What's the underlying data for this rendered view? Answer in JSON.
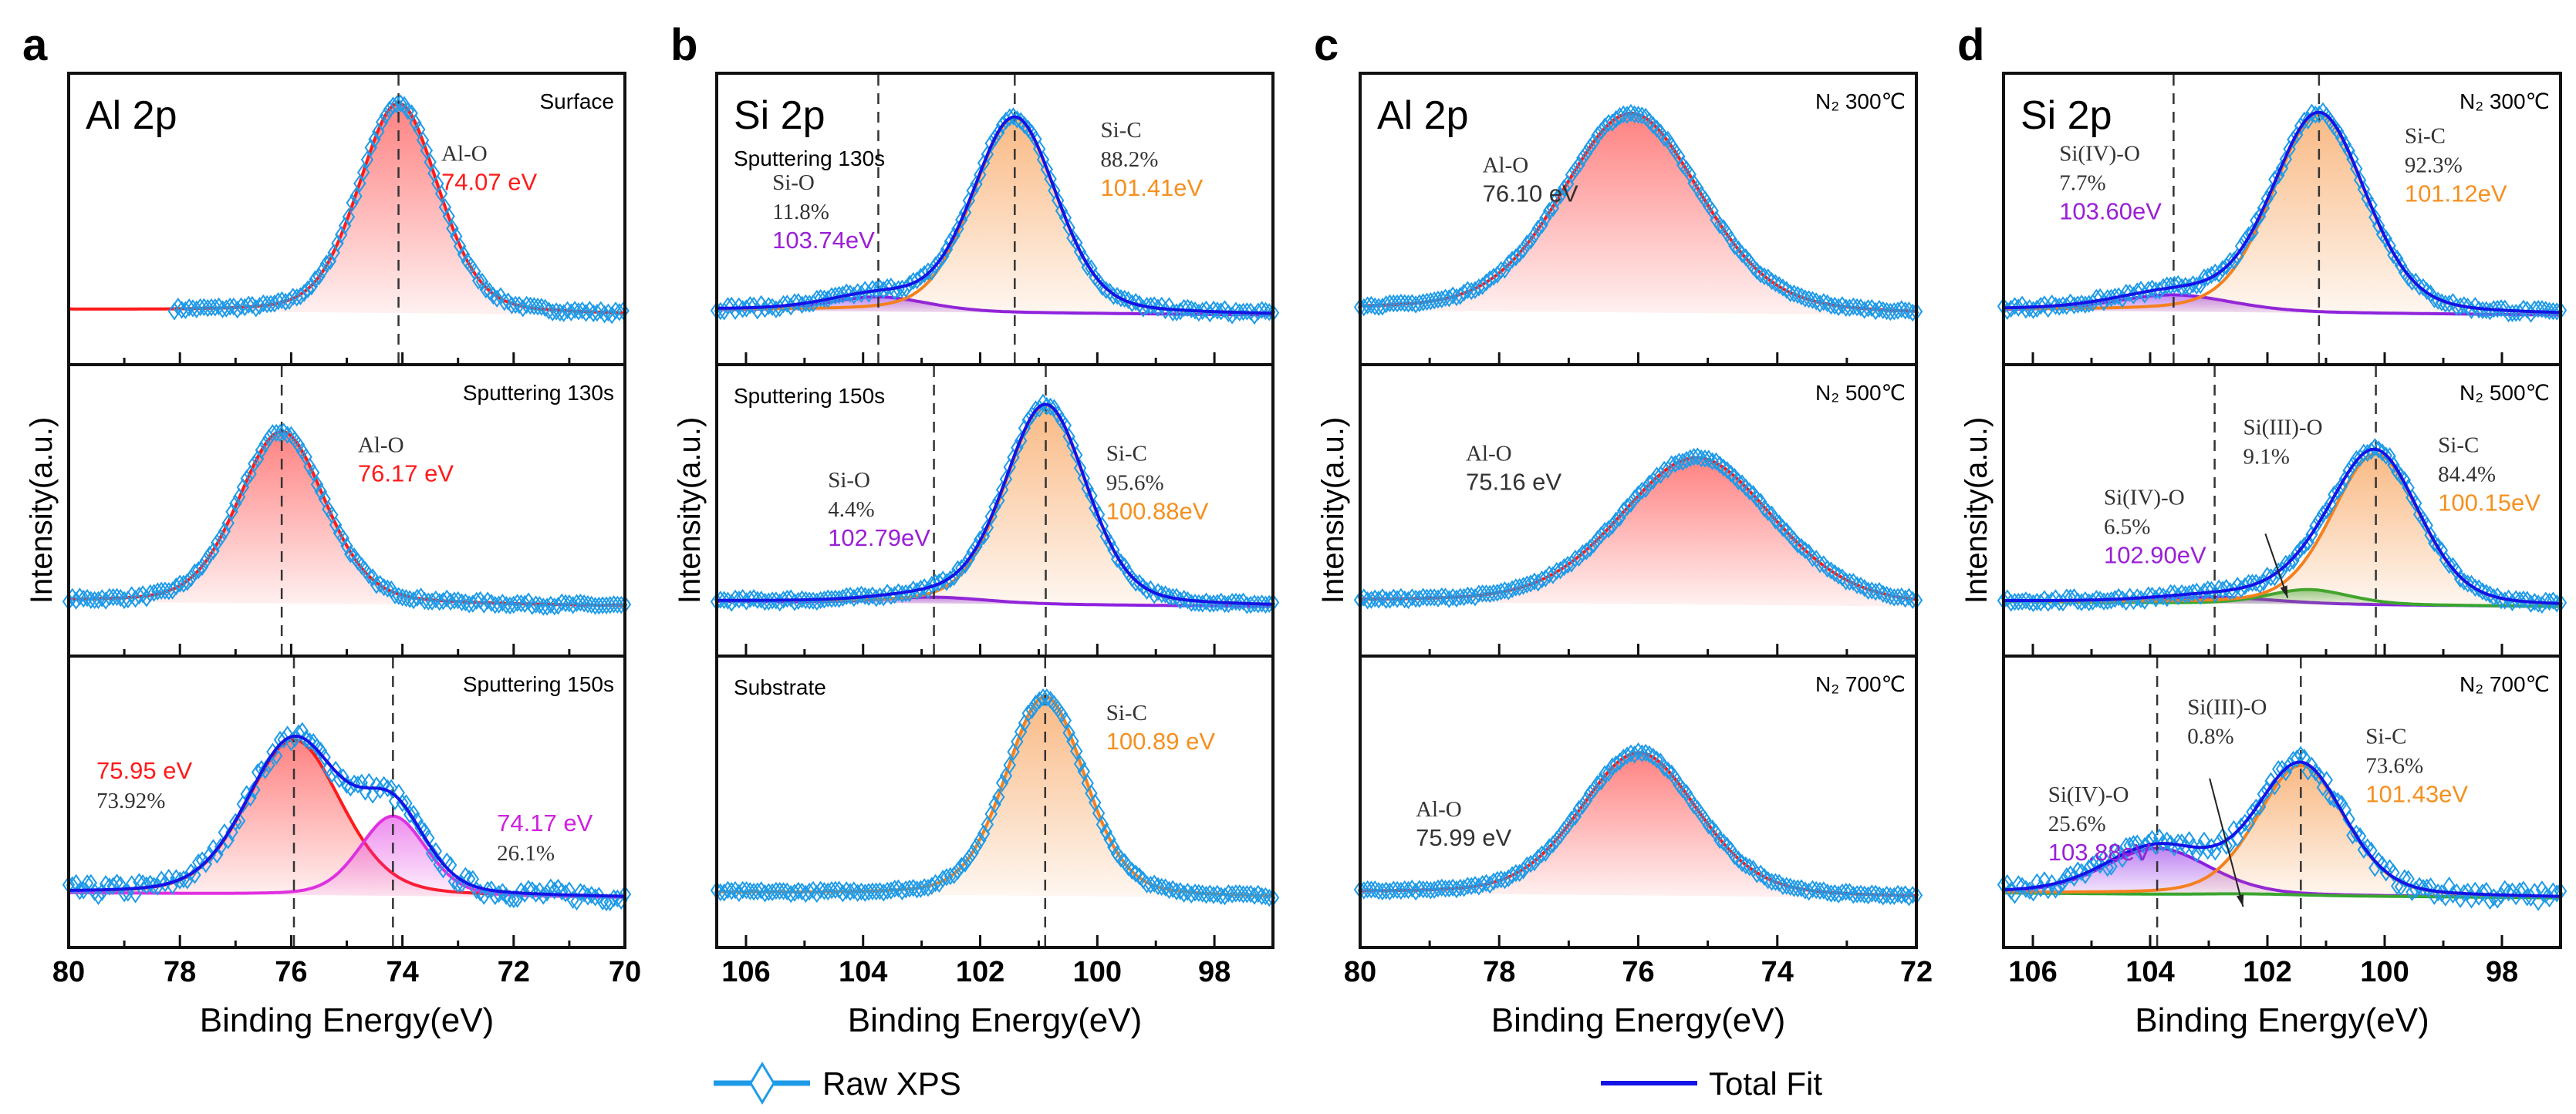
{
  "legend": {
    "raw_label": "Raw XPS",
    "fit_label": "Total Fit",
    "raw_color": "#1e9be8",
    "fit_color": "#1414e6",
    "placement": "bottom"
  },
  "chart_data": [
    {
      "panel": "a",
      "type": "line",
      "title": "Al 2p",
      "xlabel": "Binding Energy(eV)",
      "ylabel": "Intensity(a.u.)",
      "xlim": [
        80,
        70
      ],
      "xticks": [
        80,
        78,
        76,
        74,
        72,
        70
      ],
      "reversed_x": true,
      "subplots": [
        {
          "condition": "Surface",
          "dashed": [
            74.07
          ],
          "raw_range": [
            78.1,
            70
          ],
          "noise": 0.012,
          "components": [
            {
              "name": "Al-O",
              "center": 74.07,
              "amplitude": 1.0,
              "sigma": 0.72,
              "color": "#ff1a1a",
              "label": [
                {
                  "text": "Al-O",
                  "color": "#333333"
                },
                {
                  "text": "74.07 eV",
                  "color": "#ff1a1a"
                }
              ]
            }
          ]
        },
        {
          "condition": "Sputtering 130s",
          "dashed": [
            76.17
          ],
          "raw_range": [
            80,
            70
          ],
          "noise": 0.012,
          "components": [
            {
              "name": "Al-O",
              "center": 76.17,
              "amplitude": 0.82,
              "sigma": 0.78,
              "color": "#ff1a1a",
              "label": [
                {
                  "text": "Al-O",
                  "color": "#333333"
                },
                {
                  "text": "76.17 eV",
                  "color": "#ff1a1a"
                }
              ]
            }
          ]
        },
        {
          "condition": "Sputtering 150s",
          "dashed": [
            75.95,
            74.17
          ],
          "raw_range": [
            80,
            70
          ],
          "noise": 0.035,
          "components": [
            {
              "name": "Al-O",
              "center": 75.95,
              "percent": "73.92%",
              "amplitude": 0.74,
              "sigma": 0.85,
              "color": "#ff1a1a",
              "label": [
                {
                  "text": "75.95 eV",
                  "color": "#ff1a1a"
                },
                {
                  "text": "73.92%",
                  "color": "#333333"
                }
              ]
            },
            {
              "name": "",
              "center": 74.17,
              "percent": "26.1%",
              "amplitude": 0.38,
              "sigma": 0.6,
              "color": "#e030e0",
              "label": [
                {
                  "text": "74.17 eV",
                  "color": "#d020e0"
                },
                {
                  "text": "26.1%",
                  "color": "#333333"
                }
              ]
            }
          ]
        }
      ]
    },
    {
      "panel": "b",
      "type": "line",
      "title": "Si 2p",
      "xlabel": "Binding Energy(eV)",
      "ylabel": "Intensity(a.u.)",
      "xlim": [
        106.5,
        97
      ],
      "xticks": [
        106,
        104,
        102,
        100,
        98
      ],
      "reversed_x": true,
      "subplots": [
        {
          "condition": "Sputtering 130s",
          "dashed": [
            103.74,
            101.41
          ],
          "raw_range": [
            106.5,
            97
          ],
          "noise": 0.015,
          "components": [
            {
              "name": "Si-O",
              "center": 103.74,
              "percent": "11.8%",
              "amplitude": 0.07,
              "sigma": 0.85,
              "color": "#8a1ee6",
              "label": [
                {
                  "text": "Si-O",
                  "color": "#333333"
                },
                {
                  "text": "11.8%",
                  "color": "#333333"
                },
                {
                  "text": "103.74eV",
                  "color": "#9b1fd6"
                }
              ]
            },
            {
              "name": "Si-C",
              "center": 101.41,
              "percent": "88.2%",
              "amplitude": 0.93,
              "sigma": 0.72,
              "color": "#f5801f",
              "label": [
                {
                  "text": "Si-C",
                  "color": "#333333"
                },
                {
                  "text": "88.2%",
                  "color": "#333333"
                },
                {
                  "text": "101.41eV",
                  "color": "#f5901f"
                }
              ]
            }
          ]
        },
        {
          "condition": "Sputtering 150s",
          "dashed": [
            102.79,
            100.88
          ],
          "raw_range": [
            106.5,
            97
          ],
          "noise": 0.012,
          "components": [
            {
              "name": "Si-O",
              "center": 102.79,
              "percent": "4.4%",
              "amplitude": 0.03,
              "sigma": 0.9,
              "color": "#8a1ee6",
              "label": [
                {
                  "text": "Si-O",
                  "color": "#333333"
                },
                {
                  "text": "4.4%",
                  "color": "#333333"
                },
                {
                  "text": "102.79eV",
                  "color": "#9b1fd6"
                }
              ]
            },
            {
              "name": "Si-C",
              "center": 100.88,
              "percent": "95.6%",
              "amplitude": 0.95,
              "sigma": 0.7,
              "color": "#f5801f",
              "label": [
                {
                  "text": "Si-C",
                  "color": "#333333"
                },
                {
                  "text": "95.6%",
                  "color": "#333333"
                },
                {
                  "text": "100.88eV",
                  "color": "#f5901f"
                }
              ]
            }
          ]
        },
        {
          "condition": "Substrate",
          "dashed": [
            100.89
          ],
          "raw_range": [
            106.5,
            97
          ],
          "noise": 0.01,
          "components": [
            {
              "name": "Si-C",
              "center": 100.89,
              "amplitude": 0.95,
              "sigma": 0.68,
              "color": "#f5801f",
              "label": [
                {
                  "text": "Si-C",
                  "color": "#333333"
                },
                {
                  "text": "100.89 eV",
                  "color": "#f5901f"
                }
              ]
            }
          ]
        }
      ]
    },
    {
      "panel": "c",
      "type": "line",
      "title": "Al 2p",
      "xlabel": "Binding Energy(eV)",
      "ylabel": "Intensity(a.u.)",
      "xlim": [
        80,
        72
      ],
      "xticks": [
        80,
        78,
        76,
        74,
        72
      ],
      "reversed_x": true,
      "subplots": [
        {
          "condition": "N₂ 300℃",
          "dashed": [],
          "raw_range": [
            80,
            72
          ],
          "noise": 0.008,
          "components": [
            {
              "name": "Al-O",
              "center": 76.1,
              "amplitude": 0.95,
              "sigma": 1.0,
              "color": "#ff1a1a",
              "label": [
                {
                  "text": "Al-O",
                  "color": "#333333"
                },
                {
                  "text": "76.10 eV",
                  "color": "#333333"
                }
              ]
            }
          ]
        },
        {
          "condition": "N₂ 500℃",
          "dashed": [],
          "raw_range": [
            80,
            72
          ],
          "noise": 0.008,
          "components": [
            {
              "name": "Al-O",
              "center": 75.16,
              "amplitude": 0.7,
              "sigma": 1.1,
              "color": "#ff1a1a",
              "label": [
                {
                  "text": "Al-O",
                  "color": "#333333"
                },
                {
                  "text": "75.16 eV",
                  "color": "#333333"
                }
              ]
            }
          ]
        },
        {
          "condition": "N₂ 700℃",
          "dashed": [],
          "raw_range": [
            80,
            72
          ],
          "noise": 0.008,
          "components": [
            {
              "name": "Al-O",
              "center": 75.99,
              "amplitude": 0.68,
              "sigma": 0.85,
              "color": "#ff1a1a",
              "label": [
                {
                  "text": "Al-O",
                  "color": "#333333"
                },
                {
                  "text": "75.99 eV",
                  "color": "#333333"
                }
              ]
            }
          ]
        }
      ]
    },
    {
      "panel": "d",
      "type": "line",
      "title": "Si 2p",
      "xlabel": "Binding Energy(eV)",
      "ylabel": "Intensity(a.u.)",
      "xlim": [
        106.5,
        97
      ],
      "xticks": [
        106,
        104,
        102,
        100,
        98
      ],
      "reversed_x": true,
      "subplots": [
        {
          "condition": "N₂ 300℃",
          "dashed": [
            103.6,
            101.12
          ],
          "raw_range": [
            106.5,
            97
          ],
          "noise": 0.015,
          "components": [
            {
              "name": "Si(IV)-O",
              "center": 103.6,
              "percent": "7.7%",
              "amplitude": 0.08,
              "sigma": 1.0,
              "color": "#8a1ee6",
              "label": [
                {
                  "text": "Si(IV)-O",
                  "color": "#333333"
                },
                {
                  "text": "7.7%",
                  "color": "#333333"
                },
                {
                  "text": "103.60eV",
                  "color": "#9b1fd6"
                }
              ]
            },
            {
              "name": "Si-C",
              "center": 101.12,
              "percent": "92.3%",
              "amplitude": 0.95,
              "sigma": 0.8,
              "color": "#f5801f",
              "label": [
                {
                  "text": "Si-C",
                  "color": "#333333"
                },
                {
                  "text": "92.3%",
                  "color": "#333333"
                },
                {
                  "text": "101.12eV",
                  "color": "#f5901f"
                }
              ]
            }
          ]
        },
        {
          "condition": "N₂ 500℃",
          "dashed": [
            102.9,
            100.15
          ],
          "raw_range": [
            106.5,
            97
          ],
          "noise": 0.015,
          "components": [
            {
              "name": "Si(IV)-O",
              "center": 102.9,
              "percent": "6.5%",
              "amplitude": 0.03,
              "sigma": 1.0,
              "color": "#8a1ee6",
              "label": [
                {
                  "text": "Si(IV)-O",
                  "color": "#333333"
                },
                {
                  "text": "6.5%",
                  "color": "#333333"
                },
                {
                  "text": "102.90eV",
                  "color": "#9b1fd6"
                }
              ]
            },
            {
              "name": "Si(III)-O",
              "center": 101.3,
              "percent": "9.1%",
              "amplitude": 0.07,
              "sigma": 0.7,
              "color": "#2fa82f",
              "label": [
                {
                  "text": "Si(III)-O",
                  "color": "#333333"
                },
                {
                  "text": "9.1%",
                  "color": "#333333"
                }
              ]
            },
            {
              "name": "Si-C",
              "center": 100.15,
              "percent": "84.4%",
              "amplitude": 0.72,
              "sigma": 0.75,
              "color": "#f5801f",
              "label": [
                {
                  "text": "Si-C",
                  "color": "#333333"
                },
                {
                  "text": "84.4%",
                  "color": "#333333"
                },
                {
                  "text": "100.15eV",
                  "color": "#f5901f"
                }
              ]
            }
          ]
        },
        {
          "condition": "N₂ 700℃",
          "dashed": [
            103.88,
            101.43
          ],
          "raw_range": [
            106.5,
            97
          ],
          "noise": 0.035,
          "components": [
            {
              "name": "Si(IV)-O",
              "center": 103.88,
              "percent": "25.6%",
              "amplitude": 0.22,
              "sigma": 0.9,
              "color": "#8a1ee6",
              "label": [
                {
                  "text": "Si(IV)-O",
                  "color": "#333333"
                },
                {
                  "text": "25.6%",
                  "color": "#333333"
                },
                {
                  "text": "103.88eV",
                  "color": "#9b1fd6"
                }
              ]
            },
            {
              "name": "Si(III)-O",
              "center": 102.3,
              "percent": "0.8%",
              "amplitude": 0.006,
              "sigma": 0.8,
              "color": "#2fa82f",
              "label": [
                {
                  "text": "Si(III)-O",
                  "color": "#333333"
                },
                {
                  "text": "0.8%",
                  "color": "#333333"
                }
              ]
            },
            {
              "name": "Si-C",
              "center": 101.43,
              "percent": "73.6%",
              "amplitude": 0.62,
              "sigma": 0.75,
              "color": "#f5801f",
              "label": [
                {
                  "text": "Si-C",
                  "color": "#333333"
                },
                {
                  "text": "73.6%",
                  "color": "#333333"
                },
                {
                  "text": "101.43eV",
                  "color": "#f5901f"
                }
              ]
            }
          ]
        }
      ]
    }
  ]
}
